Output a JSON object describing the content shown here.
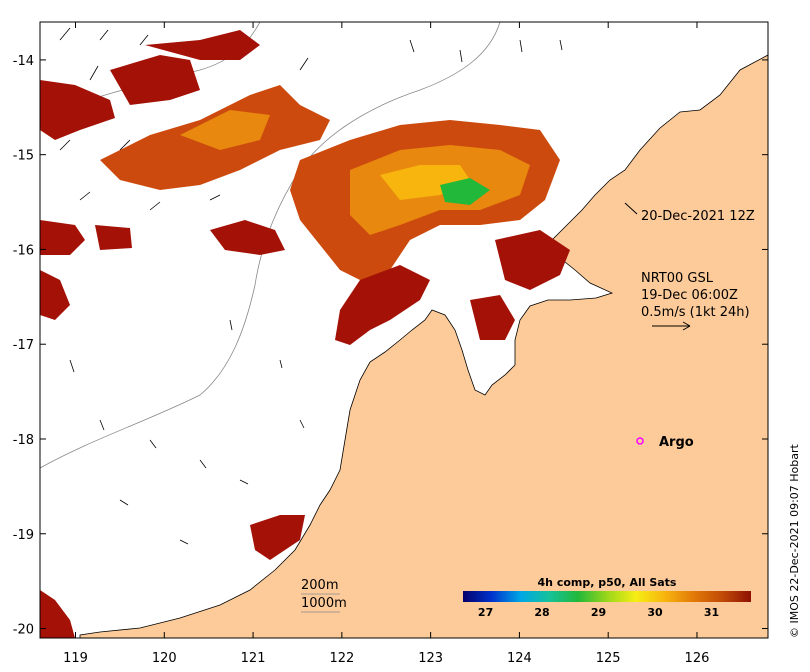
{
  "map": {
    "x_tick_labels": [
      "119",
      "120",
      "121",
      "122",
      "123",
      "124",
      "125",
      "126"
    ],
    "y_tick_labels": [
      "-14",
      "-15",
      "-16",
      "-17",
      "-18",
      "-19",
      "-20"
    ],
    "lon_range": [
      118.6,
      126.8
    ],
    "lat_range": [
      -20.1,
      -13.6
    ]
  },
  "annotations": {
    "obs_time": "20-Dec-2021 12Z",
    "current_model": "NRT00 GSL",
    "current_time": "19-Dec 06:00Z",
    "current_scale": "0.5m/s (1kt 24h)",
    "argo_label": "Argo",
    "contour_200": "200m",
    "contour_1000": "1000m",
    "credit": "© IMOS 22-Dec-2021 09:07 Hobart"
  },
  "colorbar": {
    "title": "4h comp, p50, All Sats",
    "ticks": [
      "27",
      "28",
      "29",
      "30",
      "31"
    ],
    "range": [
      26.6,
      31.7
    ],
    "colors": [
      "#05006b",
      "#0033cc",
      "#00a6e6",
      "#16c29a",
      "#22b83a",
      "#9ad61a",
      "#f6ee15",
      "#f7b50e",
      "#e27a08",
      "#c04a06",
      "#8e1104"
    ]
  },
  "colors": {
    "land": "#fdcb9a",
    "sst_warm": "#a31107",
    "sst_mid": "#cc4a0d",
    "sst_orange": "#e9880e"
  }
}
